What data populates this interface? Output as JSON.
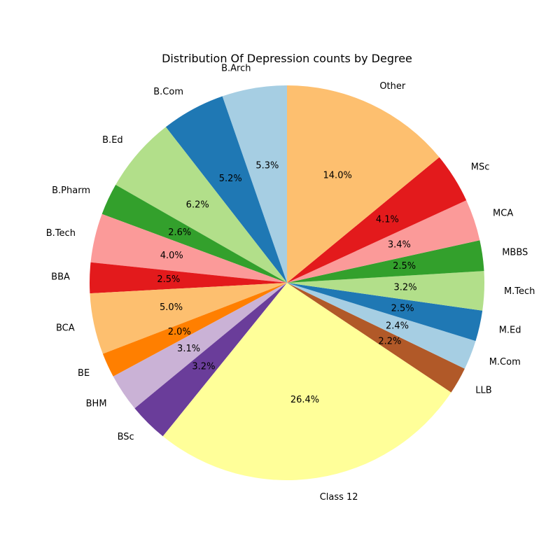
{
  "chart_data": {
    "type": "pie",
    "title": "Distribution Of Depression counts by Degree",
    "start_angle_deg": 90,
    "direction": "counterclockwise",
    "slices": [
      {
        "label": "B.Arch",
        "value": 5.3,
        "pct_label": "5.3%",
        "color": "#a6cee3"
      },
      {
        "label": "B.Com",
        "value": 5.2,
        "pct_label": "5.2%",
        "color": "#1f78b4"
      },
      {
        "label": "B.Ed",
        "value": 6.2,
        "pct_label": "6.2%",
        "color": "#b2df8a"
      },
      {
        "label": "B.Pharm",
        "value": 2.6,
        "pct_label": "2.6%",
        "color": "#33a02c"
      },
      {
        "label": "B.Tech",
        "value": 4.0,
        "pct_label": "4.0%",
        "color": "#fb9a99"
      },
      {
        "label": "BBA",
        "value": 2.5,
        "pct_label": "2.5%",
        "color": "#e31a1c"
      },
      {
        "label": "BCA",
        "value": 5.0,
        "pct_label": "5.0%",
        "color": "#fdbf6f"
      },
      {
        "label": "BE",
        "value": 2.0,
        "pct_label": "2.0%",
        "color": "#ff7f00"
      },
      {
        "label": "BHM",
        "value": 3.1,
        "pct_label": "3.1%",
        "color": "#cab2d6"
      },
      {
        "label": "BSc",
        "value": 3.2,
        "pct_label": "3.2%",
        "color": "#6a3d9a"
      },
      {
        "label": "Class 12",
        "value": 26.4,
        "pct_label": "26.4%",
        "color": "#ffff99"
      },
      {
        "label": "LLB",
        "value": 2.2,
        "pct_label": "2.2%",
        "color": "#b15928"
      },
      {
        "label": "M.Com",
        "value": 2.4,
        "pct_label": "2.4%",
        "color": "#a6cee3"
      },
      {
        "label": "M.Ed",
        "value": 2.5,
        "pct_label": "2.5%",
        "color": "#1f78b4"
      },
      {
        "label": "M.Tech",
        "value": 3.2,
        "pct_label": "3.2%",
        "color": "#b2df8a"
      },
      {
        "label": "MBBS",
        "value": 2.5,
        "pct_label": "2.5%",
        "color": "#33a02c"
      },
      {
        "label": "MCA",
        "value": 3.4,
        "pct_label": "3.4%",
        "color": "#fb9a99"
      },
      {
        "label": "MSc",
        "value": 4.1,
        "pct_label": "4.1%",
        "color": "#e31a1c"
      },
      {
        "label": "Other",
        "value": 14.0,
        "pct_label": "14.0%",
        "color": "#fdbf6f"
      }
    ]
  }
}
